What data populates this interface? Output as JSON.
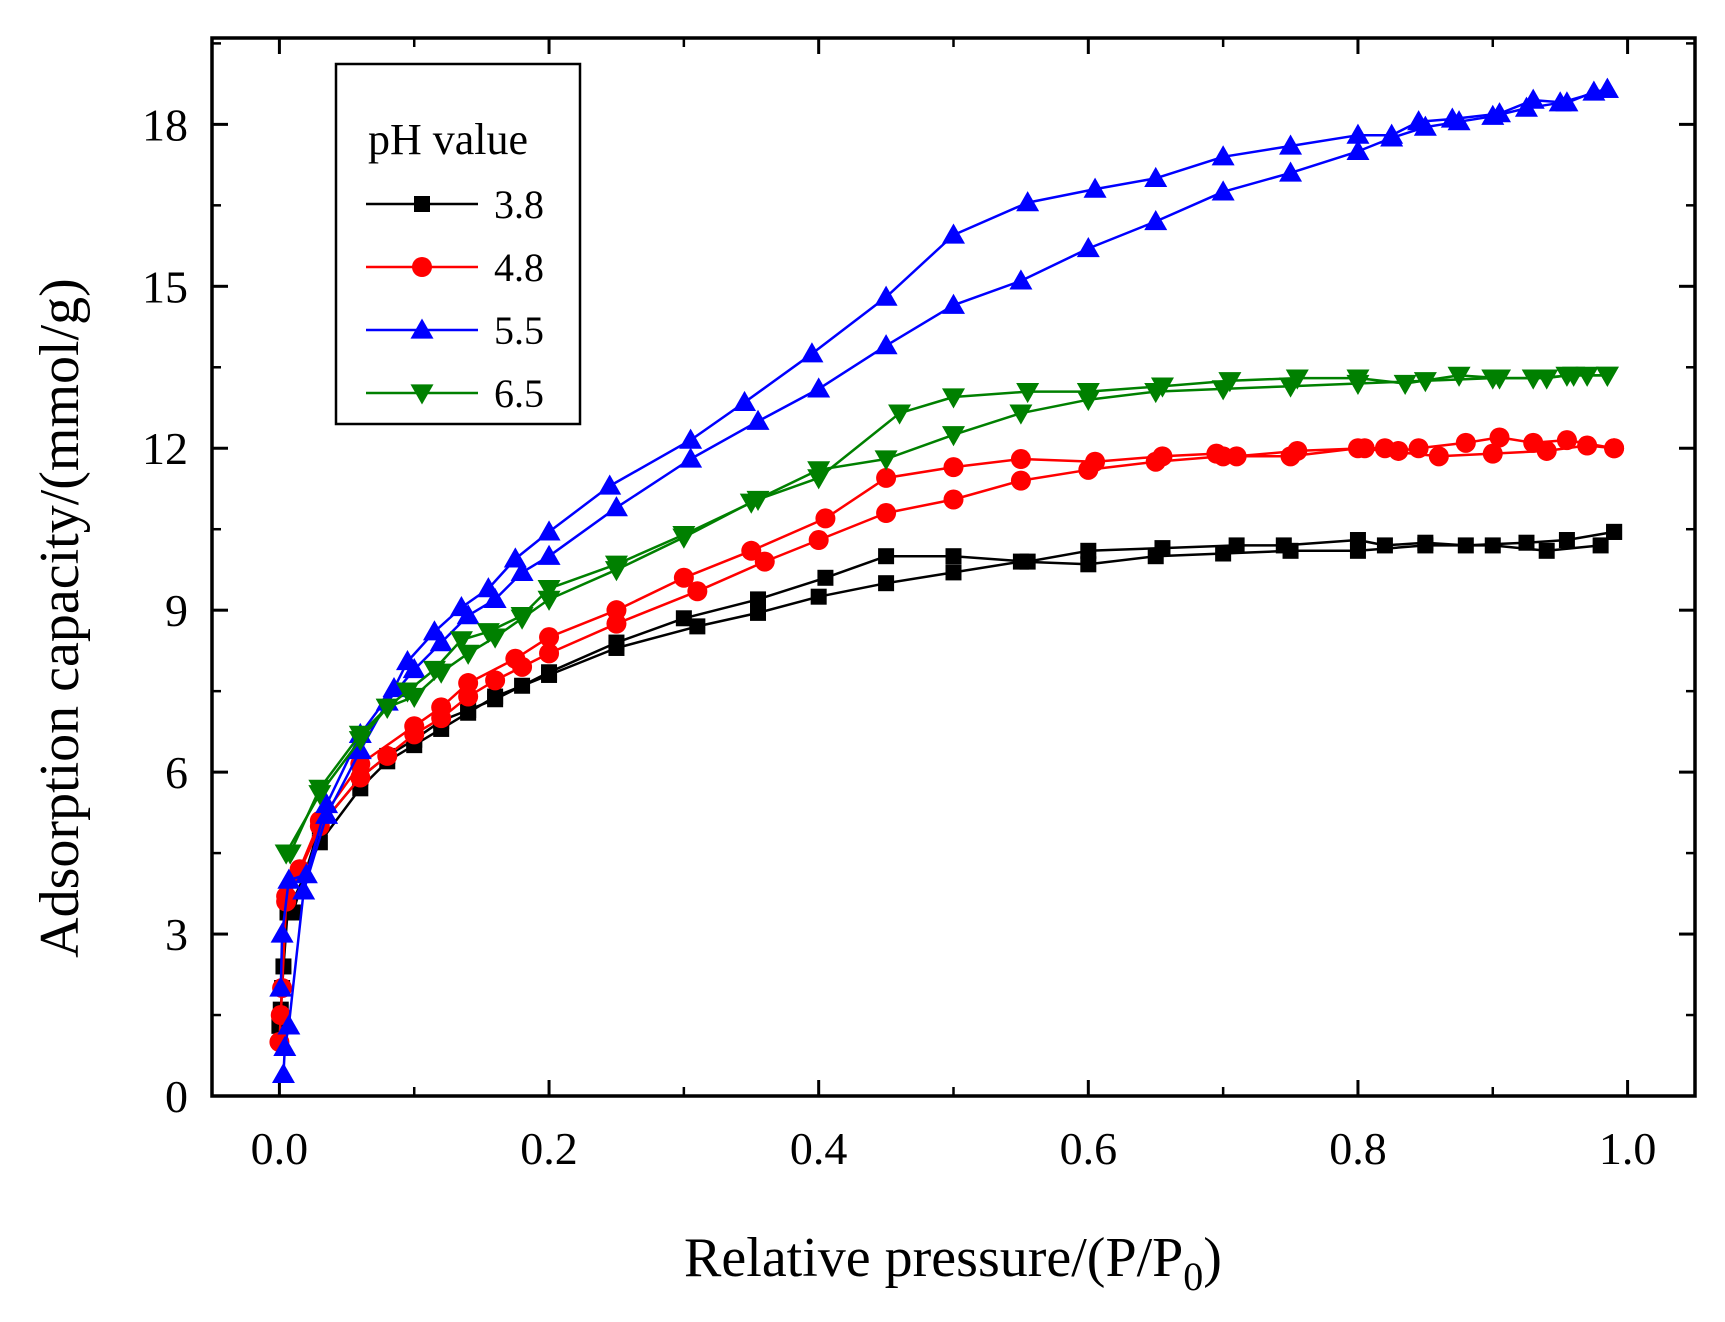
{
  "chart_data": {
    "type": "line",
    "title": "",
    "xlabel": "Relative pressure/(P/P",
    "xlabel_sub": "0",
    "xlabel_end": ")",
    "ylabel": "Adsorption capacity/(mmol/g)",
    "xlim": [
      -0.05,
      1.05
    ],
    "ylim": [
      0,
      19.6
    ],
    "xticks": [
      0.0,
      0.2,
      0.4,
      0.6,
      0.8,
      1.0
    ],
    "xtick_labels": [
      "0.0",
      "0.2",
      "0.4",
      "0.6",
      "0.8",
      "1.0"
    ],
    "yticks": [
      0,
      3,
      6,
      9,
      12,
      15,
      18
    ],
    "ytick_labels": [
      "0",
      "3",
      "6",
      "9",
      "12",
      "15",
      "18"
    ],
    "grid": false,
    "legend_title": "pH value",
    "legend_position": "top-left",
    "series": [
      {
        "name": "3.8",
        "color": "#000000",
        "marker": "square",
        "adsorption": [
          [
            0.0,
            1.3
          ],
          [
            0.001,
            1.6
          ],
          [
            0.002,
            2.0
          ],
          [
            0.003,
            2.4
          ],
          [
            0.006,
            3.4
          ],
          [
            0.03,
            4.7
          ],
          [
            0.06,
            5.7
          ],
          [
            0.08,
            6.2
          ],
          [
            0.1,
            6.5
          ],
          [
            0.12,
            6.8
          ],
          [
            0.14,
            7.1
          ],
          [
            0.16,
            7.4
          ],
          [
            0.18,
            7.6
          ],
          [
            0.2,
            7.8
          ],
          [
            0.25,
            8.3
          ],
          [
            0.31,
            8.7
          ],
          [
            0.355,
            8.95
          ],
          [
            0.4,
            9.25
          ],
          [
            0.45,
            9.5
          ],
          [
            0.5,
            9.7
          ],
          [
            0.55,
            9.9
          ],
          [
            0.6,
            9.85
          ],
          [
            0.65,
            10.0
          ],
          [
            0.7,
            10.05
          ],
          [
            0.75,
            10.1
          ],
          [
            0.8,
            10.1
          ],
          [
            0.85,
            10.2
          ],
          [
            0.9,
            10.2
          ],
          [
            0.94,
            10.1
          ],
          [
            0.98,
            10.2
          ],
          [
            0.99,
            10.45
          ]
        ],
        "desorption": [
          [
            0.99,
            10.45
          ],
          [
            0.955,
            10.3
          ],
          [
            0.925,
            10.25
          ],
          [
            0.88,
            10.2
          ],
          [
            0.85,
            10.25
          ],
          [
            0.82,
            10.2
          ],
          [
            0.8,
            10.3
          ],
          [
            0.745,
            10.2
          ],
          [
            0.71,
            10.2
          ],
          [
            0.655,
            10.15
          ],
          [
            0.6,
            10.1
          ],
          [
            0.555,
            9.9
          ],
          [
            0.5,
            10.0
          ],
          [
            0.45,
            10.0
          ],
          [
            0.405,
            9.6
          ],
          [
            0.355,
            9.2
          ],
          [
            0.3,
            8.85
          ],
          [
            0.25,
            8.4
          ],
          [
            0.2,
            7.85
          ],
          [
            0.16,
            7.35
          ],
          [
            0.14,
            7.15
          ],
          [
            0.12,
            6.95
          ],
          [
            0.1,
            6.6
          ],
          [
            0.08,
            6.3
          ],
          [
            0.06,
            5.9
          ],
          [
            0.03,
            5.0
          ],
          [
            0.01,
            3.4
          ]
        ]
      },
      {
        "name": "4.8",
        "color": "#ff0000",
        "marker": "circle",
        "adsorption": [
          [
            0.0,
            1.0
          ],
          [
            0.001,
            1.5
          ],
          [
            0.002,
            2.0
          ],
          [
            0.005,
            3.6
          ],
          [
            0.03,
            5.0
          ],
          [
            0.06,
            5.9
          ],
          [
            0.08,
            6.3
          ],
          [
            0.1,
            6.7
          ],
          [
            0.12,
            7.0
          ],
          [
            0.14,
            7.4
          ],
          [
            0.16,
            7.7
          ],
          [
            0.18,
            7.95
          ],
          [
            0.2,
            8.2
          ],
          [
            0.25,
            8.75
          ],
          [
            0.31,
            9.35
          ],
          [
            0.36,
            9.9
          ],
          [
            0.4,
            10.3
          ],
          [
            0.45,
            10.8
          ],
          [
            0.5,
            11.05
          ],
          [
            0.55,
            11.4
          ],
          [
            0.6,
            11.6
          ],
          [
            0.65,
            11.75
          ],
          [
            0.7,
            11.85
          ],
          [
            0.75,
            11.85
          ],
          [
            0.8,
            12.0
          ],
          [
            0.86,
            11.85
          ],
          [
            0.9,
            11.9
          ],
          [
            0.94,
            11.95
          ],
          [
            0.97,
            12.05
          ],
          [
            0.99,
            12.0
          ]
        ],
        "desorption": [
          [
            0.99,
            12.0
          ],
          [
            0.955,
            12.15
          ],
          [
            0.93,
            12.1
          ],
          [
            0.905,
            12.2
          ],
          [
            0.88,
            12.1
          ],
          [
            0.845,
            12.0
          ],
          [
            0.83,
            11.95
          ],
          [
            0.82,
            12.0
          ],
          [
            0.805,
            12.0
          ],
          [
            0.755,
            11.95
          ],
          [
            0.71,
            11.85
          ],
          [
            0.695,
            11.9
          ],
          [
            0.655,
            11.85
          ],
          [
            0.605,
            11.75
          ],
          [
            0.55,
            11.8
          ],
          [
            0.5,
            11.65
          ],
          [
            0.45,
            11.45
          ],
          [
            0.405,
            10.7
          ],
          [
            0.35,
            10.1
          ],
          [
            0.3,
            9.6
          ],
          [
            0.25,
            9.0
          ],
          [
            0.2,
            8.5
          ],
          [
            0.175,
            8.1
          ],
          [
            0.14,
            7.65
          ],
          [
            0.12,
            7.2
          ],
          [
            0.1,
            6.85
          ],
          [
            0.06,
            6.15
          ],
          [
            0.03,
            5.1
          ],
          [
            0.015,
            4.2
          ],
          [
            0.005,
            3.7
          ]
        ]
      },
      {
        "name": "5.5",
        "color": "#0000ff",
        "marker": "triangle-up",
        "adsorption": [
          [
            0.003,
            0.4
          ],
          [
            0.004,
            0.9
          ],
          [
            0.007,
            1.3
          ],
          [
            0.018,
            3.8
          ],
          [
            0.035,
            5.2
          ],
          [
            0.06,
            6.4
          ],
          [
            0.08,
            7.3
          ],
          [
            0.1,
            7.9
          ],
          [
            0.12,
            8.4
          ],
          [
            0.14,
            8.9
          ],
          [
            0.16,
            9.2
          ],
          [
            0.18,
            9.7
          ],
          [
            0.2,
            10.0
          ],
          [
            0.25,
            10.9
          ],
          [
            0.305,
            11.8
          ],
          [
            0.355,
            12.5
          ],
          [
            0.4,
            13.1
          ],
          [
            0.45,
            13.9
          ],
          [
            0.5,
            14.65
          ],
          [
            0.55,
            15.1
          ],
          [
            0.6,
            15.7
          ],
          [
            0.65,
            16.2
          ],
          [
            0.7,
            16.75
          ],
          [
            0.75,
            17.1
          ],
          [
            0.8,
            17.5
          ],
          [
            0.825,
            17.75
          ],
          [
            0.85,
            17.95
          ],
          [
            0.875,
            18.05
          ],
          [
            0.9,
            18.15
          ],
          [
            0.925,
            18.3
          ],
          [
            0.95,
            18.4
          ],
          [
            0.985,
            18.65
          ]
        ],
        "desorption": [
          [
            0.985,
            18.65
          ],
          [
            0.975,
            18.6
          ],
          [
            0.955,
            18.4
          ],
          [
            0.93,
            18.45
          ],
          [
            0.905,
            18.2
          ],
          [
            0.87,
            18.1
          ],
          [
            0.845,
            18.05
          ],
          [
            0.825,
            17.8
          ],
          [
            0.8,
            17.8
          ],
          [
            0.75,
            17.6
          ],
          [
            0.7,
            17.4
          ],
          [
            0.65,
            17.0
          ],
          [
            0.605,
            16.8
          ],
          [
            0.555,
            16.55
          ],
          [
            0.5,
            15.95
          ],
          [
            0.45,
            14.8
          ],
          [
            0.395,
            13.75
          ],
          [
            0.345,
            12.85
          ],
          [
            0.305,
            12.15
          ],
          [
            0.245,
            11.3
          ],
          [
            0.2,
            10.45
          ],
          [
            0.175,
            9.95
          ],
          [
            0.155,
            9.4
          ],
          [
            0.135,
            9.05
          ],
          [
            0.115,
            8.6
          ],
          [
            0.095,
            8.05
          ],
          [
            0.085,
            7.55
          ],
          [
            0.06,
            6.7
          ],
          [
            0.035,
            5.4
          ],
          [
            0.02,
            4.1
          ],
          [
            0.007,
            4.0
          ],
          [
            0.002,
            3.0
          ],
          [
            0.001,
            2.0
          ]
        ]
      },
      {
        "name": "6.5",
        "color": "#008000",
        "marker": "triangle-down",
        "adsorption": [
          [
            0.005,
            4.5
          ],
          [
            0.03,
            5.6
          ],
          [
            0.06,
            6.6
          ],
          [
            0.08,
            7.2
          ],
          [
            0.1,
            7.4
          ],
          [
            0.12,
            7.85
          ],
          [
            0.14,
            8.2
          ],
          [
            0.16,
            8.5
          ],
          [
            0.18,
            8.85
          ],
          [
            0.2,
            9.2
          ],
          [
            0.25,
            9.75
          ],
          [
            0.3,
            10.35
          ],
          [
            0.35,
            11.0
          ],
          [
            0.4,
            11.6
          ],
          [
            0.45,
            11.8
          ],
          [
            0.5,
            12.25
          ],
          [
            0.55,
            12.65
          ],
          [
            0.6,
            12.9
          ],
          [
            0.65,
            13.05
          ],
          [
            0.7,
            13.1
          ],
          [
            0.75,
            13.15
          ],
          [
            0.8,
            13.2
          ],
          [
            0.85,
            13.25
          ],
          [
            0.9,
            13.3
          ],
          [
            0.93,
            13.3
          ],
          [
            0.96,
            13.35
          ],
          [
            0.985,
            13.35
          ]
        ],
        "desorption": [
          [
            0.985,
            13.35
          ],
          [
            0.97,
            13.35
          ],
          [
            0.955,
            13.35
          ],
          [
            0.94,
            13.3
          ],
          [
            0.905,
            13.3
          ],
          [
            0.875,
            13.35
          ],
          [
            0.835,
            13.2
          ],
          [
            0.8,
            13.3
          ],
          [
            0.755,
            13.3
          ],
          [
            0.705,
            13.25
          ],
          [
            0.655,
            13.15
          ],
          [
            0.6,
            13.05
          ],
          [
            0.555,
            13.05
          ],
          [
            0.5,
            12.95
          ],
          [
            0.46,
            12.65
          ],
          [
            0.4,
            11.45
          ],
          [
            0.355,
            11.05
          ],
          [
            0.3,
            10.4
          ],
          [
            0.25,
            9.85
          ],
          [
            0.2,
            9.4
          ],
          [
            0.18,
            8.9
          ],
          [
            0.155,
            8.6
          ],
          [
            0.135,
            8.45
          ],
          [
            0.115,
            7.9
          ],
          [
            0.095,
            7.5
          ],
          [
            0.08,
            7.2
          ],
          [
            0.06,
            6.7
          ],
          [
            0.03,
            5.7
          ],
          [
            0.008,
            4.5
          ]
        ]
      }
    ]
  }
}
